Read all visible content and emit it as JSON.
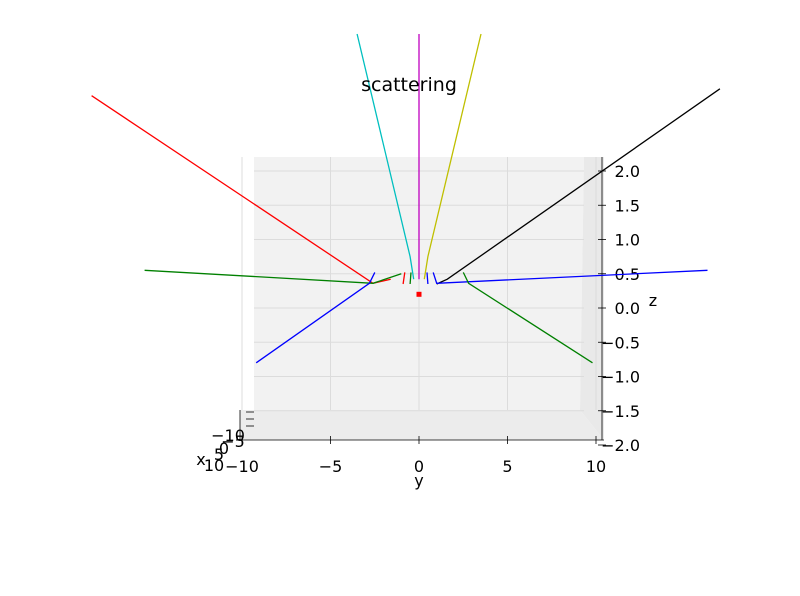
{
  "chart_data": {
    "type": "line",
    "projection": "3d",
    "title": "scattering",
    "xlabel": "x",
    "ylabel": "y",
    "zlabel": "z",
    "xlim": [
      -10,
      10
    ],
    "ylim": [
      -10,
      10
    ],
    "zlim": [
      -2,
      2
    ],
    "grid": true,
    "y_ticks": [
      -10,
      -5,
      0,
      5,
      10
    ],
    "y_tick_labels": [
      "−10",
      "−5",
      "0",
      "5",
      "10"
    ],
    "z_ticks": [
      -2.0,
      -1.5,
      -1.0,
      -0.5,
      0.0,
      0.5,
      1.0,
      1.5,
      2.0
    ],
    "z_tick_labels": [
      "−2.0",
      "−1.5",
      "−1.0",
      "−0.5",
      "0.0",
      "0.5",
      "1.0",
      "1.5",
      "2.0"
    ],
    "x_tick_labels": [
      "10",
      "5",
      "0",
      "−5",
      "−10"
    ],
    "target_marker": {
      "y": 0,
      "z": 0.2,
      "color": "#ff0000"
    },
    "series": [
      {
        "color": "#ff0000",
        "points": [
          [
            -18.5,
            3.1
          ],
          [
            -2.6,
            0.36
          ],
          [
            -1.6,
            0.42
          ]
        ]
      },
      {
        "color": "#00bfbf",
        "points": [
          [
            -3.5,
            4.0
          ],
          [
            -0.5,
            0.75
          ],
          [
            -0.3,
            0.42
          ]
        ]
      },
      {
        "color": "#bf00bf",
        "points": [
          [
            0.0,
            4.0
          ],
          [
            0.0,
            0.42
          ]
        ]
      },
      {
        "color": "#bfbf00",
        "points": [
          [
            3.5,
            4.0
          ],
          [
            0.5,
            0.75
          ],
          [
            0.3,
            0.42
          ]
        ]
      },
      {
        "color": "#000000",
        "points": [
          [
            17.0,
            3.2
          ],
          [
            1.6,
            0.42
          ],
          [
            1.0,
            0.35
          ]
        ]
      },
      {
        "color": "#008000",
        "points": [
          [
            -15.5,
            0.55
          ],
          [
            -2.6,
            0.36
          ],
          [
            -1.0,
            0.5
          ]
        ]
      },
      {
        "color": "#0000ff",
        "points": [
          [
            -9.2,
            -0.8
          ],
          [
            -2.8,
            0.36
          ],
          [
            -2.5,
            0.52
          ]
        ]
      },
      {
        "color": "#0000ff",
        "points": [
          [
            16.3,
            0.55
          ],
          [
            1.0,
            0.36
          ],
          [
            0.8,
            0.52
          ]
        ]
      },
      {
        "color": "#008000",
        "points": [
          [
            9.8,
            -0.8
          ],
          [
            2.8,
            0.36
          ],
          [
            2.5,
            0.52
          ]
        ]
      },
      {
        "color": "#ff0000",
        "points": [
          [
            -0.9,
            0.35
          ],
          [
            -0.8,
            0.52
          ]
        ]
      },
      {
        "color": "#008000",
        "points": [
          [
            -0.5,
            0.35
          ],
          [
            -0.45,
            0.52
          ]
        ]
      },
      {
        "color": "#0000ff",
        "points": [
          [
            0.5,
            0.35
          ],
          [
            0.45,
            0.52
          ]
        ]
      }
    ]
  }
}
